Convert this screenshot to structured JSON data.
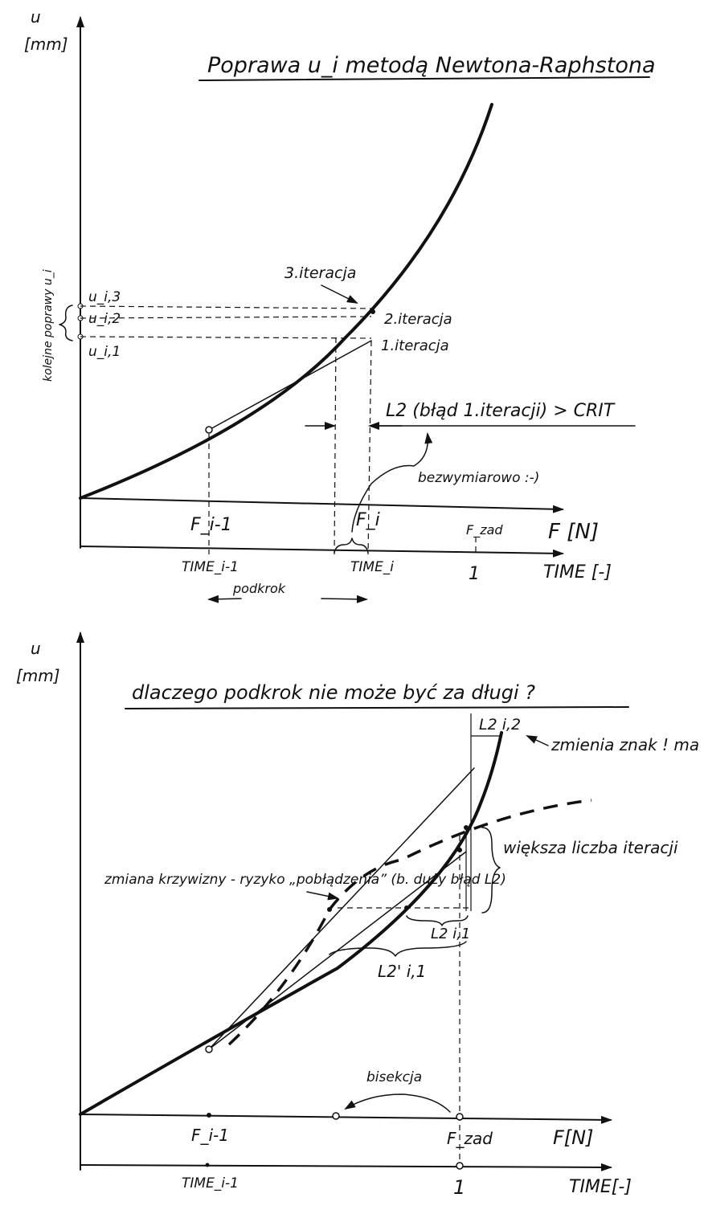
{
  "diagram1": {
    "title": "Poprawa u_i metodą Newtona-Raphstona",
    "y_axis": {
      "label": "u",
      "unit": "[mm]"
    },
    "x_axis_force": "F [N]",
    "x_axis_time": "TIME [-]",
    "side_label": "kolejne poprawy u_i",
    "u_labels": [
      "u_i,3",
      "u_i,2",
      "u_i,1"
    ],
    "iteration_labels": [
      "3.iteracja",
      "2.iteracja",
      "1.iteracja"
    ],
    "crit_label": "L2 (błąd 1.iteracji) > CRIT",
    "bezwymiarowo": "bezwymiarowo :-)",
    "force_ticks": [
      "F_i-1",
      "F_i",
      "F_zad"
    ],
    "time_ticks": [
      "TIME_i-1",
      "TIME_i",
      "1"
    ],
    "podkrok": "podkrok"
  },
  "diagram2": {
    "title": "dlaczego podkrok nie może być za długi ?",
    "y_axis": {
      "label": "u",
      "unit": "[mm]"
    },
    "x_axis_force": "F[N]",
    "x_axis_time": "TIME[-]",
    "l2_top": "L2 i,2",
    "zmienia": "zmienia znak ! ma nowce !",
    "wieksza": "większa liczba iteracji",
    "zmiana": "zmiana krzywizny - ryzyko „pobłądzenia” (b. duży błąd L2)",
    "l2_i1": "L2 i,1",
    "l2prim": "L2' i,1",
    "bisekcja": "bisekcja",
    "force_ticks": [
      "F_i-1",
      "F_zad"
    ],
    "time_ticks": [
      "TIME_i-1",
      "1"
    ]
  }
}
